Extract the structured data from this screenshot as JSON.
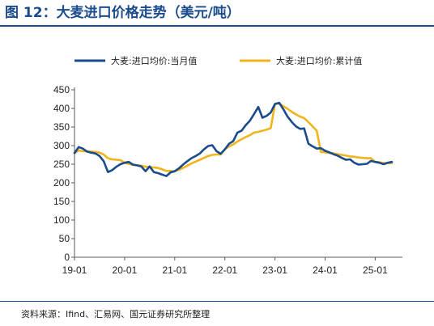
{
  "figure": {
    "title": "图 12：大麦进口价格走势（美元/吨）",
    "source": "资料来源：Ifind、汇易网、国元证券研究所整理"
  },
  "colors": {
    "title": "#1a4b8c",
    "series_monthly": "#1a4b8c",
    "series_cumulative": "#f0b41c",
    "axis": "#595959"
  },
  "chart_data": {
    "type": "line",
    "title": "",
    "xlabel": "",
    "ylabel": "",
    "x_labels": [
      "19-01",
      "20-01",
      "21-01",
      "22-01",
      "23-01",
      "24-01",
      "25-01"
    ],
    "ylim": [
      0,
      450
    ],
    "y_ticks": [
      0,
      50,
      100,
      150,
      200,
      250,
      300,
      350,
      400,
      450
    ],
    "grid": false,
    "legend_position": "top",
    "series": [
      {
        "name": "大麦:进口均价:当月值",
        "color": "#1a4b8c",
        "points": [
          [
            "2019-01",
            280
          ],
          [
            "2019-02",
            296
          ],
          [
            "2019-03",
            292
          ],
          [
            "2019-04",
            284
          ],
          [
            "2019-05",
            281
          ],
          [
            "2019-06",
            279
          ],
          [
            "2019-07",
            272
          ],
          [
            "2019-08",
            258
          ],
          [
            "2019-09",
            229
          ],
          [
            "2019-10",
            234
          ],
          [
            "2019-11",
            243
          ],
          [
            "2019-12",
            250
          ],
          [
            "2020-01",
            254
          ],
          [
            "2020-02",
            256
          ],
          [
            "2020-03",
            249
          ],
          [
            "2020-04",
            247
          ],
          [
            "2020-05",
            244
          ],
          [
            "2020-06",
            231
          ],
          [
            "2020-07",
            244
          ],
          [
            "2020-08",
            229
          ],
          [
            "2020-09",
            226
          ],
          [
            "2020-10",
            222
          ],
          [
            "2020-11",
            218
          ],
          [
            "2020-12",
            228
          ],
          [
            "2021-01",
            231
          ],
          [
            "2021-02",
            239
          ],
          [
            "2021-03",
            249
          ],
          [
            "2021-04",
            258
          ],
          [
            "2021-05",
            266
          ],
          [
            "2021-06",
            272
          ],
          [
            "2021-07",
            279
          ],
          [
            "2021-08",
            290
          ],
          [
            "2021-09",
            299
          ],
          [
            "2021-10",
            301
          ],
          [
            "2021-11",
            285
          ],
          [
            "2021-12",
            278
          ],
          [
            "2022-01",
            290
          ],
          [
            "2022-02",
            305
          ],
          [
            "2022-03",
            312
          ],
          [
            "2022-04",
            335
          ],
          [
            "2022-05",
            340
          ],
          [
            "2022-06",
            355
          ],
          [
            "2022-07",
            367
          ],
          [
            "2022-08",
            385
          ],
          [
            "2022-09",
            404
          ],
          [
            "2022-10",
            375
          ],
          [
            "2022-11",
            380
          ],
          [
            "2022-12",
            389
          ],
          [
            "2023-01",
            412
          ],
          [
            "2023-02",
            415
          ],
          [
            "2023-03",
            398
          ],
          [
            "2023-04",
            378
          ],
          [
            "2023-05",
            364
          ],
          [
            "2023-06",
            352
          ],
          [
            "2023-07",
            345
          ],
          [
            "2023-08",
            346
          ],
          [
            "2023-09",
            305
          ],
          [
            "2023-10",
            298
          ],
          [
            "2023-11",
            292
          ],
          [
            "2023-12",
            293
          ],
          [
            "2024-01",
            286
          ],
          [
            "2024-02",
            282
          ],
          [
            "2024-03",
            277
          ],
          [
            "2024-04",
            273
          ],
          [
            "2024-05",
            267
          ],
          [
            "2024-06",
            262
          ],
          [
            "2024-07",
            263
          ],
          [
            "2024-08",
            254
          ],
          [
            "2024-09",
            249
          ],
          [
            "2024-10",
            250
          ],
          [
            "2024-11",
            251
          ],
          [
            "2024-12",
            259
          ],
          [
            "2025-01",
            256
          ],
          [
            "2025-02",
            254
          ],
          [
            "2025-03",
            250
          ],
          [
            "2025-04",
            254
          ],
          [
            "2025-05",
            256
          ]
        ]
      },
      {
        "name": "大麦:进口均价:累计值",
        "color": "#f0b41c",
        "points": [
          [
            "2019-01",
            280
          ],
          [
            "2019-02",
            287
          ],
          [
            "2019-03",
            285
          ],
          [
            "2019-04",
            285
          ],
          [
            "2019-05",
            284
          ],
          [
            "2019-06",
            283
          ],
          [
            "2019-07",
            281
          ],
          [
            "2019-08",
            276
          ],
          [
            "2019-09",
            266
          ],
          [
            "2019-10",
            263
          ],
          [
            "2019-11",
            262
          ],
          [
            "2019-12",
            261
          ],
          [
            "2020-01",
            254
          ],
          [
            "2020-02",
            251
          ],
          [
            "2020-03",
            248
          ],
          [
            "2020-04",
            247
          ],
          [
            "2020-05",
            246
          ],
          [
            "2020-06",
            243
          ],
          [
            "2020-07",
            243
          ],
          [
            "2020-08",
            241
          ],
          [
            "2020-09",
            240
          ],
          [
            "2020-10",
            236
          ],
          [
            "2020-11",
            232
          ],
          [
            "2020-12",
            232
          ],
          [
            "2021-01",
            231
          ],
          [
            "2021-02",
            235
          ],
          [
            "2021-03",
            240
          ],
          [
            "2021-04",
            246
          ],
          [
            "2021-05",
            252
          ],
          [
            "2021-06",
            257
          ],
          [
            "2021-07",
            262
          ],
          [
            "2021-08",
            267
          ],
          [
            "2021-09",
            272
          ],
          [
            "2021-10",
            275
          ],
          [
            "2021-11",
            276
          ],
          [
            "2021-12",
            276
          ],
          [
            "2022-01",
            290
          ],
          [
            "2022-02",
            298
          ],
          [
            "2022-03",
            303
          ],
          [
            "2022-04",
            311
          ],
          [
            "2022-05",
            317
          ],
          [
            "2022-06",
            323
          ],
          [
            "2022-07",
            328
          ],
          [
            "2022-08",
            335
          ],
          [
            "2022-09",
            337
          ],
          [
            "2022-10",
            340
          ],
          [
            "2022-11",
            343
          ],
          [
            "2022-12",
            347
          ],
          [
            "2023-01",
            412
          ],
          [
            "2023-02",
            413
          ],
          [
            "2023-03",
            406
          ],
          [
            "2023-04",
            399
          ],
          [
            "2023-05",
            391
          ],
          [
            "2023-06",
            384
          ],
          [
            "2023-07",
            378
          ],
          [
            "2023-08",
            374
          ],
          [
            "2023-09",
            363
          ],
          [
            "2023-10",
            352
          ],
          [
            "2023-11",
            340
          ],
          [
            "2023-12",
            283
          ],
          [
            "2024-01",
            282
          ],
          [
            "2024-02",
            280
          ],
          [
            "2024-03",
            279
          ],
          [
            "2024-04",
            277
          ],
          [
            "2024-05",
            275
          ],
          [
            "2024-06",
            273
          ],
          [
            "2024-07",
            271
          ],
          [
            "2024-08",
            270
          ],
          [
            "2024-09",
            268
          ],
          [
            "2024-10",
            267
          ],
          [
            "2024-11",
            266
          ],
          [
            "2024-12",
            266
          ],
          [
            "2025-01",
            256
          ],
          [
            "2025-02",
            255
          ],
          [
            "2025-03",
            253
          ],
          [
            "2025-04",
            253
          ],
          [
            "2025-05",
            253
          ]
        ]
      }
    ]
  }
}
